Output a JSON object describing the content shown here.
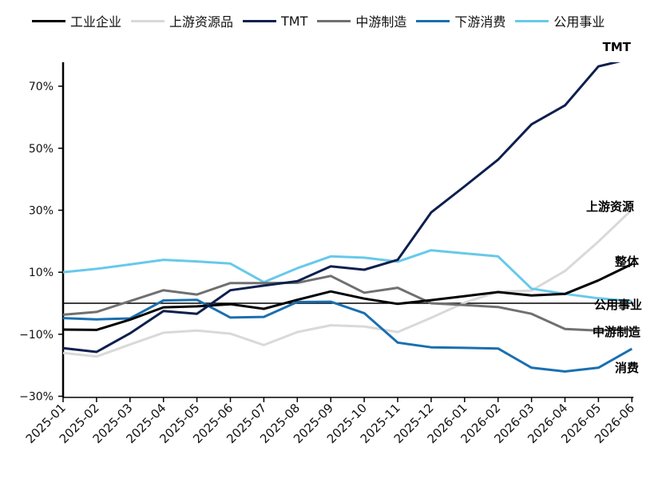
{
  "chart_data": {
    "type": "line",
    "title": "",
    "xlabel": "",
    "ylabel": "",
    "ylim": [
      -30,
      77
    ],
    "yticks": [
      -30,
      -10,
      10,
      30,
      50,
      70
    ],
    "ytick_labels": [
      "−30%",
      "−10%",
      "10%",
      "30%",
      "50%",
      "70%"
    ],
    "categories": [
      "2025-01",
      "2025-02",
      "2025-03",
      "2025-04",
      "2025-05",
      "2025-06",
      "2025-07",
      "2025-08",
      "2025-09",
      "2025-10",
      "2025-11",
      "2025-12",
      "2026-01",
      "2026-02",
      "2026-03",
      "2026-04",
      "2026-05",
      "2026-06"
    ],
    "legend_position": "top",
    "series": [
      {
        "name": "工业企业",
        "color": "#000000",
        "end_label": "整体",
        "values": [
          -8.5,
          -8.6,
          -5.3,
          -1.3,
          -1.0,
          -0.3,
          -1.8,
          1.1,
          3.8,
          1.5,
          -0.2,
          1.0,
          2.3,
          3.6,
          2.5,
          3.0,
          7.4,
          12.6
        ]
      },
      {
        "name": "上游资源品",
        "color": "#d9d9d9",
        "end_label": "上游资源",
        "values": [
          -16.0,
          -17.2,
          -13.3,
          -9.5,
          -8.8,
          -9.8,
          -13.5,
          -9.3,
          -7.1,
          -7.5,
          -9.3,
          -4.7,
          0.2,
          3.7,
          4.1,
          10.4,
          19.9,
          30.2
        ]
      },
      {
        "name": "TMT",
        "color": "#0d1f4e",
        "end_label": "TMT",
        "values": [
          -14.5,
          -15.7,
          -9.7,
          -2.5,
          -3.4,
          4.2,
          5.7,
          7.1,
          11.9,
          10.8,
          14.0,
          29.3,
          37.7,
          46.3,
          57.7,
          63.8,
          76.4,
          79.0
        ]
      },
      {
        "name": "中游制造",
        "color": "#707070",
        "end_label": "中游制造",
        "values": [
          -3.7,
          -2.8,
          0.7,
          4.2,
          2.8,
          6.5,
          6.5,
          6.6,
          8.8,
          3.4,
          5.0,
          0.0,
          -0.6,
          -1.2,
          -3.4,
          -8.3,
          -8.8,
          -8.4
        ]
      },
      {
        "name": "下游消费",
        "color": "#1a6fb0",
        "end_label": "消费",
        "values": [
          -4.8,
          -5.2,
          -4.9,
          0.9,
          1.1,
          -4.6,
          -4.4,
          0.4,
          0.5,
          -3.2,
          -12.7,
          -14.2,
          -14.4,
          -14.6,
          -20.8,
          -22.0,
          -20.8,
          -14.7
        ]
      },
      {
        "name": "公用事业",
        "color": "#66c9ea",
        "end_label": "公用事业",
        "values": [
          10.0,
          11.1,
          12.5,
          14.0,
          13.5,
          12.8,
          6.8,
          11.3,
          15.1,
          14.7,
          13.4,
          17.1,
          16.1,
          15.1,
          4.7,
          3.0,
          1.6,
          0.7
        ]
      }
    ]
  }
}
